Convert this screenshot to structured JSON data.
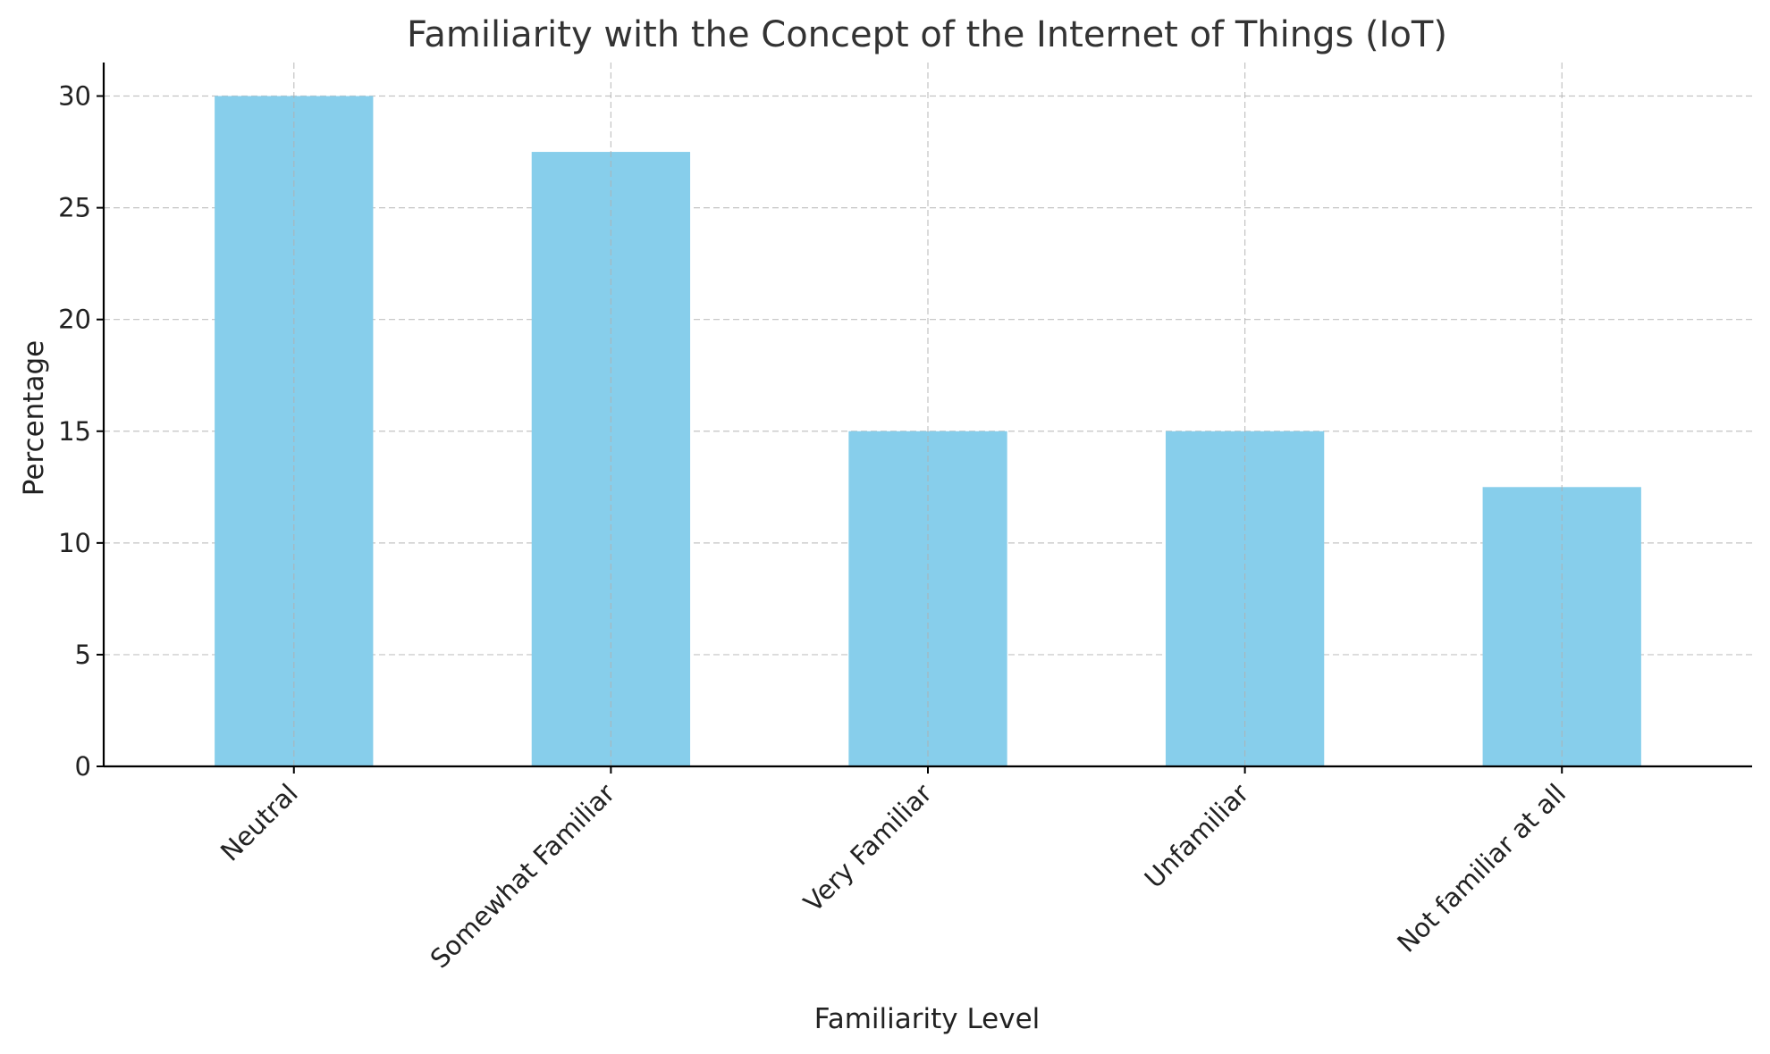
{
  "chart_data": {
    "type": "bar",
    "title": "Familiarity with the Concept of the Internet of Things (IoT)",
    "xlabel": "Familiarity Level",
    "ylabel": "Percentage",
    "categories": [
      "Neutral",
      "Somewhat Familiar",
      "Very Familiar",
      "Unfamiliar",
      "Not familiar at all"
    ],
    "values": [
      30,
      27.5,
      15,
      15,
      12.5
    ],
    "ylim": [
      0,
      31.5
    ],
    "yticks": [
      "0",
      "5",
      "10",
      "15",
      "20",
      "25",
      "30"
    ],
    "grid": true,
    "bar_color": "#87CEEB"
  }
}
